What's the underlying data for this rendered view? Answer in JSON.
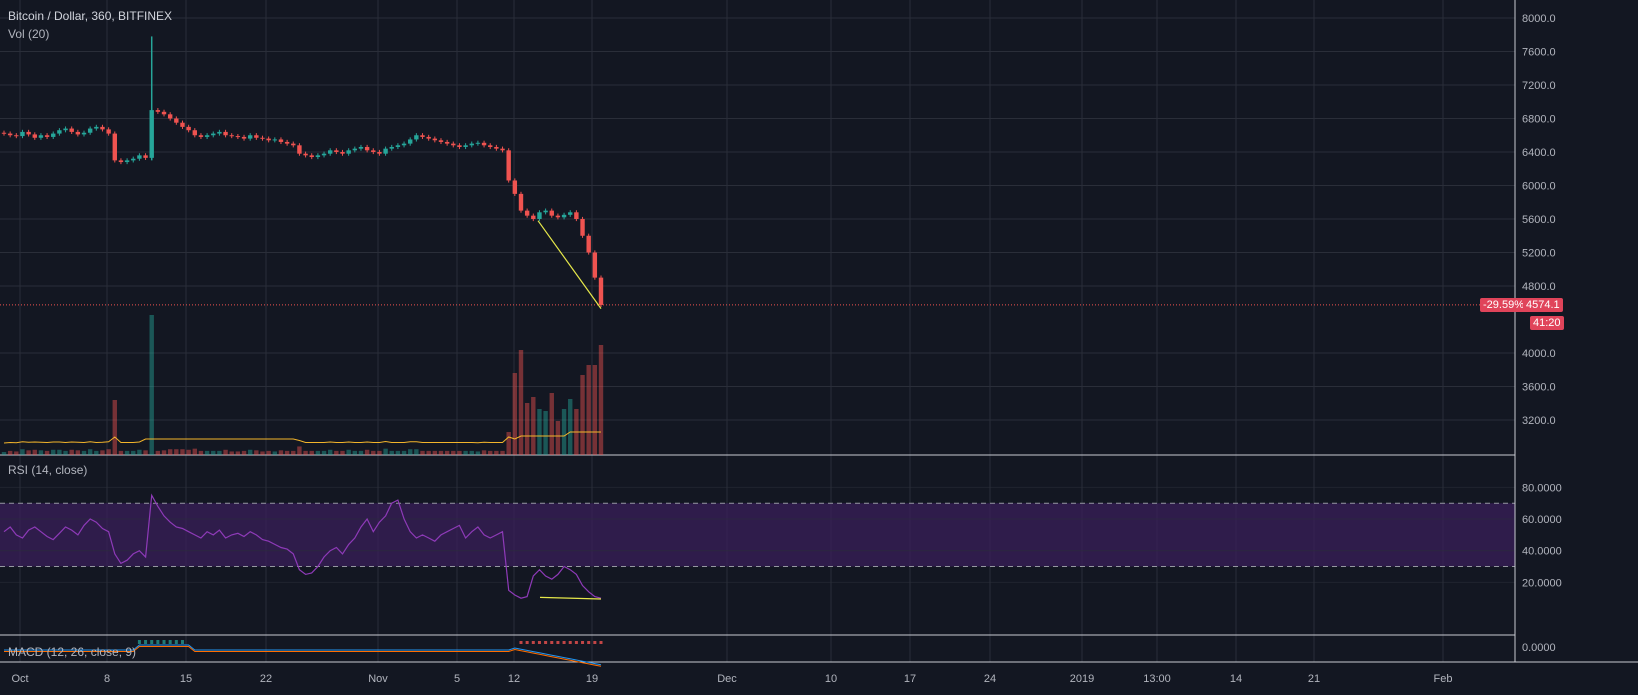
{
  "header": {
    "title": "Bitcoin / Dollar, 360, BITFINEX",
    "vol_label": "Vol (20)",
    "rsi_label": "RSI (14, close)",
    "macd_label": "MACD (12, 26, close, 9)"
  },
  "tags": {
    "change": "-29.59%",
    "price": "4574.1",
    "countdown": "41:20"
  },
  "colors": {
    "up": "#26a69a",
    "down": "#ef5350",
    "rsi_line": "#8e3ab8",
    "rsi_band": "#3a1f5a",
    "vol_ma": "#f3b52b",
    "trend": "#e6e84a",
    "grid": "#2a2e39"
  },
  "chart_data": [
    {
      "type": "candlestick",
      "title": "Bitcoin / Dollar, 360, BITFINEX",
      "ylim": [
        3000,
        8100
      ],
      "y_ticks": [
        "8000.0",
        "7600.0",
        "7200.0",
        "6800.0",
        "6400.0",
        "6000.0",
        "5600.0",
        "5200.0",
        "4800.0",
        "4000.0",
        "3600.0",
        "3200.0"
      ],
      "x_ticks": [
        "Oct",
        "8",
        "15",
        "22",
        "Nov",
        "5",
        "12",
        "19",
        "Dec",
        "10",
        "17",
        "24",
        "2019",
        "13:00",
        "14",
        "21",
        "Feb"
      ],
      "last_price": 4574.1,
      "closes": [
        6620,
        6600,
        6590,
        6640,
        6610,
        6570,
        6600,
        6580,
        6620,
        6660,
        6680,
        6640,
        6610,
        6630,
        6680,
        6700,
        6670,
        6620,
        6300,
        6280,
        6300,
        6320,
        6360,
        6330,
        6900,
        6880,
        6850,
        6800,
        6750,
        6700,
        6660,
        6600,
        6580,
        6600,
        6620,
        6640,
        6600,
        6590,
        6580,
        6560,
        6600,
        6570,
        6560,
        6540,
        6550,
        6520,
        6500,
        6480,
        6380,
        6360,
        6340,
        6360,
        6380,
        6420,
        6400,
        6380,
        6420,
        6440,
        6460,
        6420,
        6400,
        6380,
        6440,
        6460,
        6480,
        6500,
        6550,
        6600,
        6580,
        6560,
        6540,
        6520,
        6500,
        6480,
        6460,
        6480,
        6500,
        6510,
        6480,
        6460,
        6440,
        6420,
        6060,
        5900,
        5700,
        5640,
        5600,
        5680,
        5700,
        5640,
        5620,
        5650,
        5680,
        5600,
        5400,
        5200,
        4900,
        4574
      ]
    },
    {
      "type": "bar",
      "title": "Vol (20)"
    },
    {
      "type": "line",
      "title": "RSI (14, close)",
      "ylim": [
        0,
        90
      ],
      "y_ticks": [
        "80.0000",
        "60.0000",
        "40.0000",
        "20.0000"
      ],
      "overbought": 70,
      "oversold": 30,
      "values": [
        52,
        55,
        50,
        48,
        53,
        55,
        52,
        49,
        47,
        51,
        55,
        53,
        50,
        56,
        60,
        58,
        54,
        52,
        38,
        32,
        34,
        38,
        40,
        36,
        75,
        68,
        62,
        58,
        55,
        54,
        52,
        50,
        48,
        52,
        50,
        53,
        48,
        50,
        51,
        49,
        52,
        50,
        47,
        46,
        44,
        42,
        41,
        38,
        28,
        25,
        26,
        30,
        36,
        40,
        42,
        38,
        44,
        48,
        55,
        60,
        52,
        58,
        62,
        70,
        72,
        60,
        52,
        48,
        50,
        48,
        46,
        50,
        52,
        54,
        56,
        48,
        52,
        55,
        50,
        48,
        50,
        52,
        15,
        12,
        10,
        11,
        24,
        28,
        24,
        22,
        25,
        30,
        28,
        25,
        18,
        14,
        11,
        10
      ]
    },
    {
      "type": "line",
      "title": "MACD (12, 26, close, 9)",
      "y_ticks": [
        "0.0000"
      ]
    }
  ]
}
